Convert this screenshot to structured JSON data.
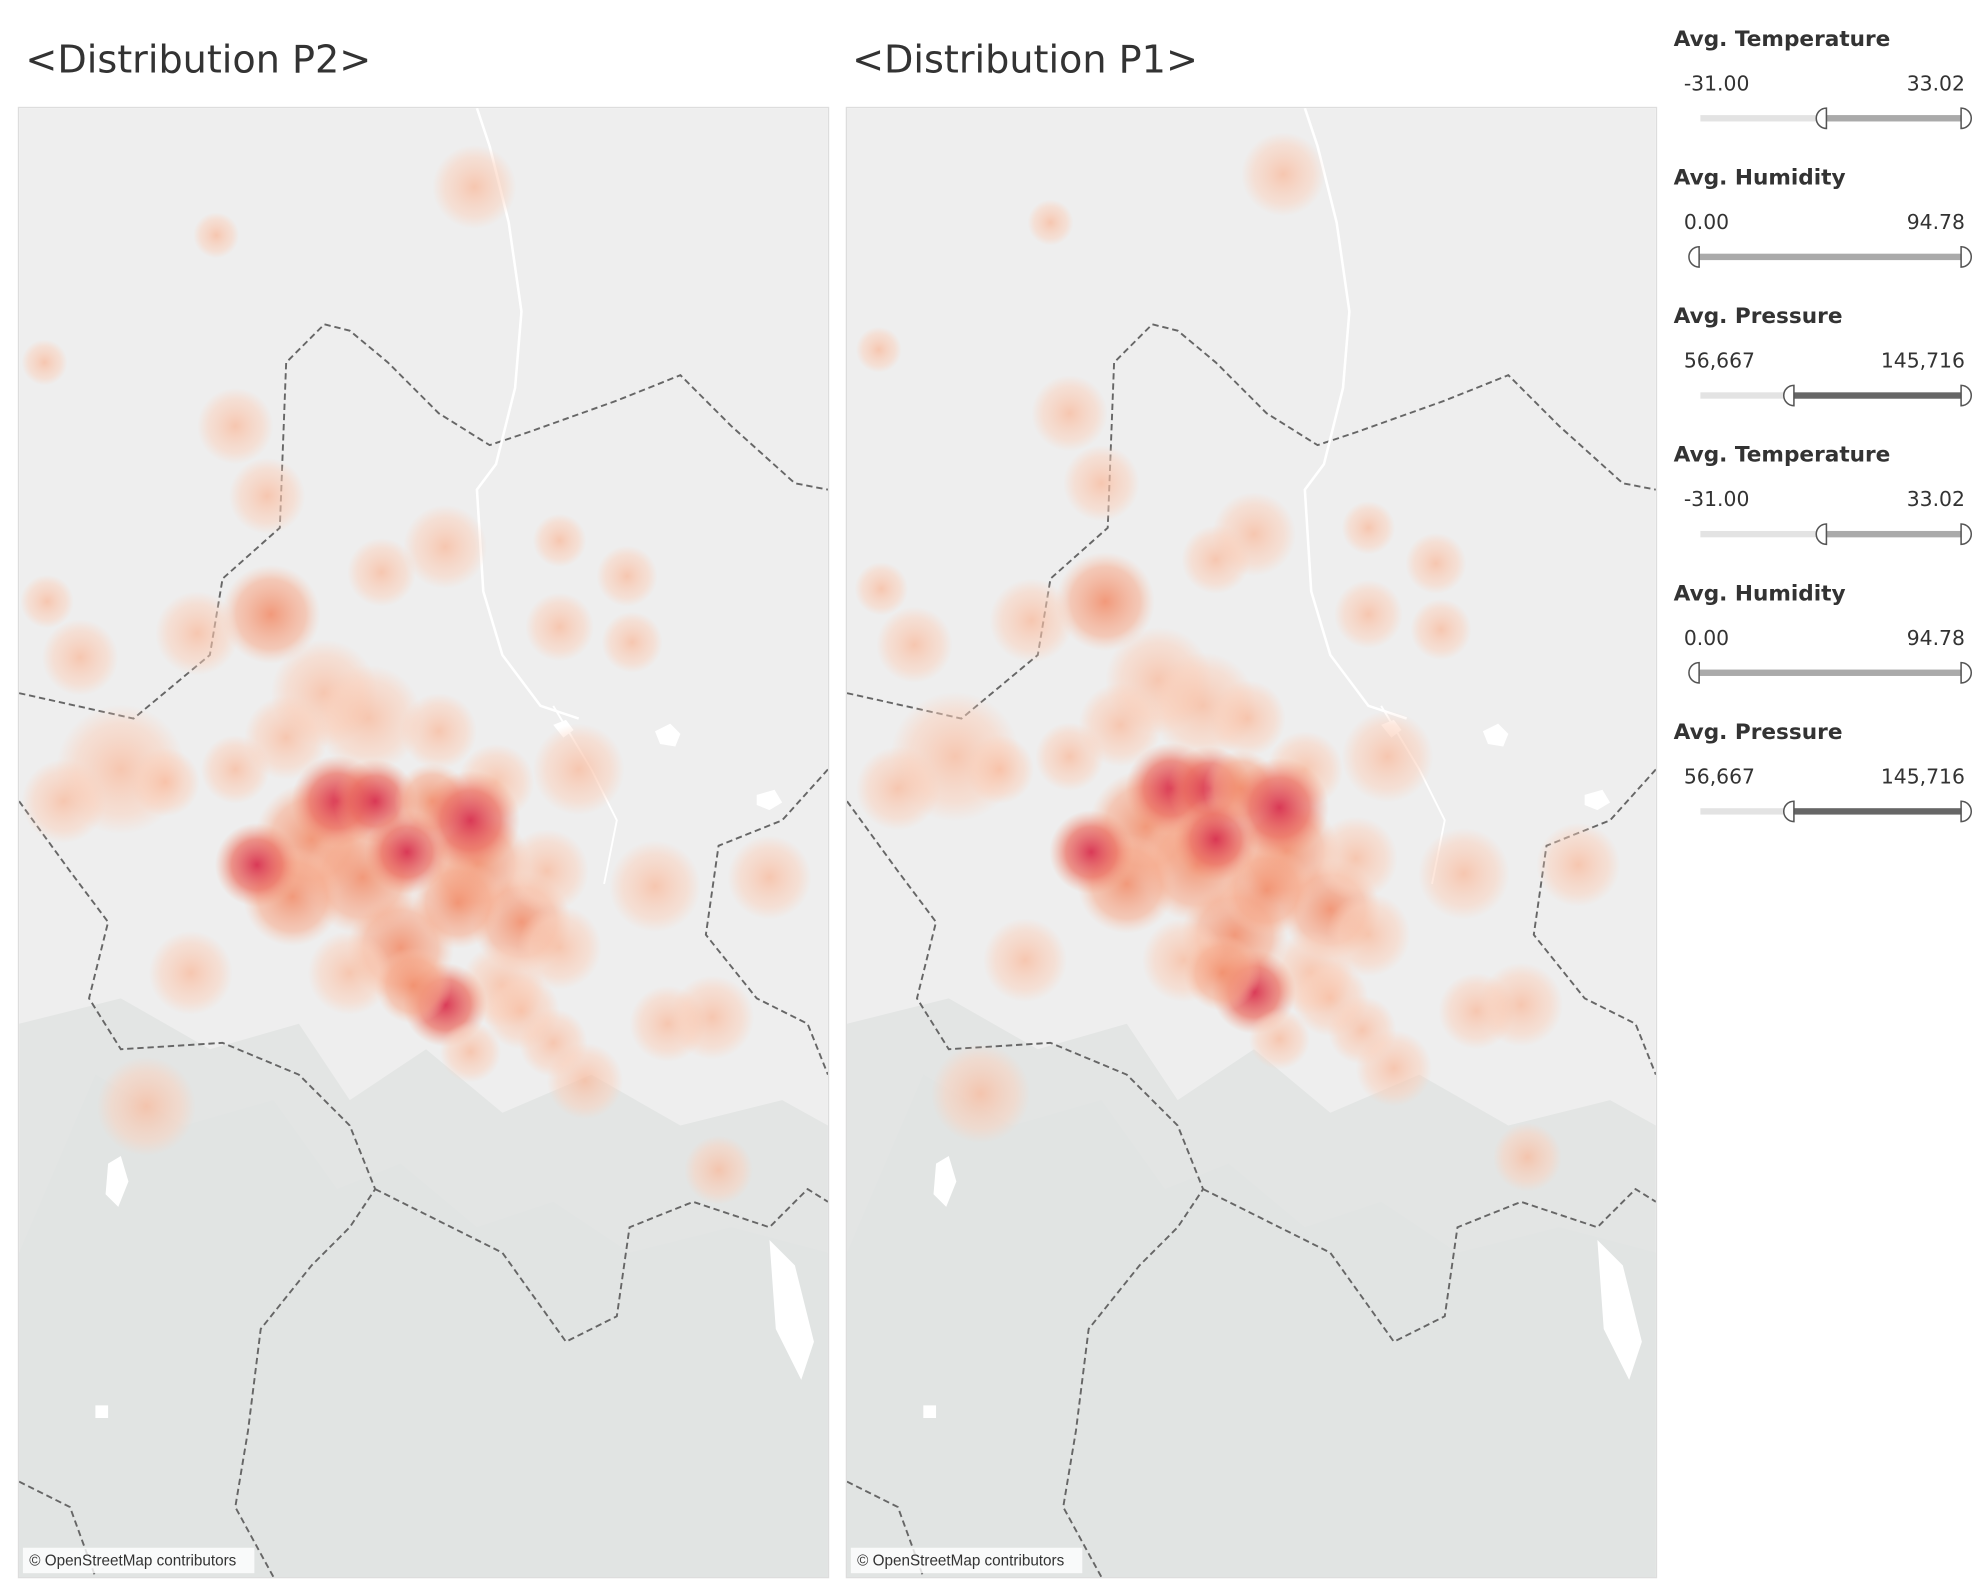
{
  "maps": [
    {
      "title": "<Distribution P2>",
      "attribution": "© OpenStreetMap contributors"
    },
    {
      "title": "<Distribution P1>",
      "attribution": "© OpenStreetMap contributors"
    }
  ],
  "filters": [
    {
      "label": "Avg. Temperature",
      "min": "-31.00",
      "max": "33.02"
    },
    {
      "label": "Avg. Humidity",
      "min": "0.00",
      "max": "94.78"
    },
    {
      "label": "Avg. Pressure",
      "min": "56,667",
      "max": "145,716"
    },
    {
      "label": "Avg. Temperature",
      "min": "-31.00",
      "max": "33.02"
    },
    {
      "label": "Avg. Humidity",
      "min": "0.00",
      "max": "94.78"
    },
    {
      "label": "Avg. Pressure",
      "min": "56,667",
      "max": "145,716"
    }
  ]
}
